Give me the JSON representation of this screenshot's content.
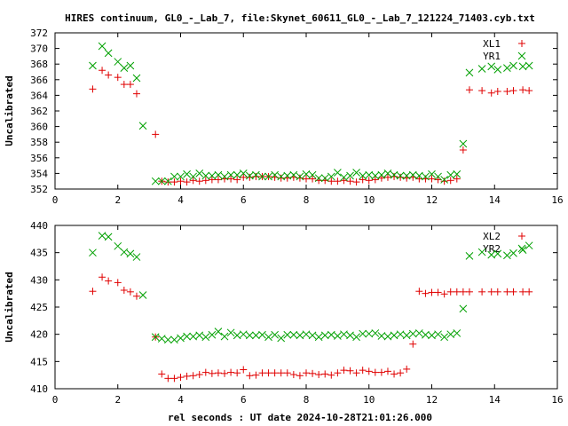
{
  "colors": {
    "background": "#ffffff",
    "series_a": "#e00000",
    "series_b": "#00a000",
    "axis": "#000000"
  },
  "title": "HIRES continuum, GL0_-_Lab_7, file:Skynet_60611_GL0_-_Lab_7_121224_71403.cyb.txt",
  "xlabel": "rel seconds : UT date 2024-10-28T21:01:26.000",
  "chart_data": [
    {
      "type": "scatter",
      "ylabel": "Uncalibrated",
      "xlim": [
        0,
        16
      ],
      "ylim": [
        352,
        372
      ],
      "xticks": [
        0,
        2,
        4,
        6,
        8,
        10,
        12,
        14,
        16
      ],
      "yticks": [
        352,
        354,
        356,
        358,
        360,
        362,
        364,
        366,
        368,
        370,
        372
      ],
      "series": [
        {
          "name": "XL1",
          "marker": "plus",
          "color": "#e00000",
          "x": [
            1.2,
            1.5,
            1.7,
            2.0,
            2.2,
            2.4,
            2.6,
            3.2,
            3.4,
            3.6,
            3.8,
            4.0,
            4.2,
            4.4,
            4.6,
            4.8,
            5.0,
            5.2,
            5.4,
            5.6,
            5.8,
            6.0,
            6.2,
            6.4,
            6.6,
            6.8,
            7.0,
            7.2,
            7.4,
            7.6,
            7.8,
            8.0,
            8.2,
            8.4,
            8.6,
            8.8,
            9.0,
            9.2,
            9.4,
            9.6,
            9.8,
            10.0,
            10.2,
            10.4,
            10.6,
            10.8,
            11.0,
            11.2,
            11.4,
            11.6,
            11.8,
            12.0,
            12.2,
            12.4,
            12.6,
            12.8,
            13.0,
            13.2,
            13.6,
            13.9,
            14.1,
            14.4,
            14.6,
            14.9,
            15.1
          ],
          "y": [
            364.8,
            367.2,
            366.6,
            366.3,
            365.4,
            365.4,
            364.2,
            359.0,
            353.0,
            352.9,
            352.9,
            353.0,
            352.9,
            353.1,
            353.0,
            353.1,
            353.2,
            353.2,
            353.3,
            353.3,
            353.2,
            353.5,
            353.5,
            353.6,
            353.6,
            353.6,
            353.5,
            353.4,
            353.4,
            353.5,
            353.4,
            353.3,
            353.3,
            353.1,
            353.1,
            353.0,
            353.0,
            353.1,
            353.0,
            352.9,
            353.2,
            353.1,
            353.2,
            353.4,
            353.5,
            353.6,
            353.5,
            353.4,
            353.5,
            353.3,
            353.3,
            353.3,
            353.2,
            353.0,
            353.1,
            353.3,
            357.0,
            364.7,
            364.6,
            364.3,
            364.5,
            364.5,
            364.6,
            364.7,
            364.6
          ]
        },
        {
          "name": "YR1",
          "marker": "cross",
          "color": "#00a000",
          "x": [
            1.2,
            1.5,
            1.7,
            2.0,
            2.2,
            2.4,
            2.6,
            2.8,
            3.2,
            3.4,
            3.6,
            3.8,
            4.0,
            4.2,
            4.4,
            4.6,
            4.8,
            5.0,
            5.2,
            5.4,
            5.6,
            5.8,
            6.0,
            6.2,
            6.4,
            6.6,
            6.8,
            7.0,
            7.2,
            7.4,
            7.6,
            7.8,
            8.0,
            8.2,
            8.4,
            8.6,
            8.8,
            9.0,
            9.2,
            9.4,
            9.6,
            9.8,
            10.0,
            10.2,
            10.4,
            10.6,
            10.8,
            11.0,
            11.2,
            11.4,
            11.6,
            11.8,
            12.0,
            12.2,
            12.4,
            12.6,
            12.8,
            13.0,
            13.2,
            13.6,
            13.9,
            14.1,
            14.4,
            14.6,
            14.9,
            15.1
          ],
          "y": [
            367.8,
            370.3,
            369.4,
            368.3,
            367.5,
            367.8,
            366.2,
            360.1,
            353.0,
            353.0,
            353.0,
            353.6,
            353.6,
            353.9,
            353.6,
            354.0,
            353.7,
            353.7,
            353.8,
            353.6,
            353.8,
            353.8,
            354.0,
            353.7,
            353.8,
            353.6,
            353.6,
            353.8,
            353.6,
            353.7,
            353.8,
            353.6,
            353.9,
            353.8,
            353.4,
            353.4,
            353.6,
            354.1,
            353.5,
            353.7,
            354.1,
            353.7,
            353.8,
            353.7,
            353.8,
            354.0,
            353.8,
            353.7,
            353.7,
            353.8,
            353.7,
            353.6,
            353.9,
            353.6,
            353.2,
            353.8,
            353.9,
            357.8,
            366.9,
            367.4,
            367.7,
            367.3,
            367.5,
            367.8,
            367.7,
            367.8
          ]
        }
      ]
    },
    {
      "type": "scatter",
      "ylabel": "Uncalibrated",
      "xlim": [
        0,
        16
      ],
      "ylim": [
        410,
        440
      ],
      "xticks": [
        0,
        2,
        4,
        6,
        8,
        10,
        12,
        14,
        16
      ],
      "yticks": [
        410,
        415,
        420,
        425,
        430,
        435,
        440
      ],
      "series": [
        {
          "name": "XL2",
          "marker": "plus",
          "color": "#e00000",
          "x": [
            1.2,
            1.5,
            1.7,
            2.0,
            2.2,
            2.4,
            2.6,
            3.2,
            3.4,
            3.6,
            3.8,
            4.0,
            4.2,
            4.4,
            4.6,
            4.8,
            5.0,
            5.2,
            5.4,
            5.6,
            5.8,
            6.0,
            6.2,
            6.4,
            6.6,
            6.8,
            7.0,
            7.2,
            7.4,
            7.6,
            7.8,
            8.0,
            8.2,
            8.4,
            8.6,
            8.8,
            9.0,
            9.2,
            9.4,
            9.6,
            9.8,
            10.0,
            10.2,
            10.4,
            10.6,
            10.8,
            11.0,
            11.2,
            11.4,
            11.6,
            11.8,
            12.0,
            12.2,
            12.4,
            12.6,
            12.8,
            13.0,
            13.2,
            13.6,
            13.9,
            14.1,
            14.4,
            14.6,
            14.9,
            15.1
          ],
          "y": [
            427.9,
            430.5,
            429.8,
            429.5,
            428.1,
            427.8,
            427.0,
            419.5,
            412.7,
            411.9,
            411.9,
            412.1,
            412.3,
            412.4,
            412.6,
            413.0,
            412.8,
            412.9,
            412.8,
            413.0,
            412.9,
            413.5,
            412.4,
            412.5,
            412.9,
            412.9,
            412.9,
            412.9,
            412.9,
            412.6,
            412.4,
            412.9,
            412.8,
            412.6,
            412.7,
            412.5,
            412.9,
            413.4,
            413.3,
            412.9,
            413.4,
            413.2,
            413.0,
            413.0,
            413.2,
            412.7,
            412.9,
            413.6,
            418.2,
            427.9,
            427.5,
            427.7,
            427.7,
            427.4,
            427.8,
            427.8,
            427.8,
            427.8,
            427.8,
            427.8,
            427.8,
            427.8,
            427.8,
            427.8,
            427.8
          ]
        },
        {
          "name": "YR2",
          "marker": "cross",
          "color": "#00a000",
          "x": [
            1.2,
            1.5,
            1.7,
            2.0,
            2.2,
            2.4,
            2.6,
            2.8,
            3.2,
            3.4,
            3.6,
            3.8,
            4.0,
            4.2,
            4.4,
            4.6,
            4.8,
            5.0,
            5.2,
            5.4,
            5.6,
            5.8,
            6.0,
            6.2,
            6.4,
            6.6,
            6.8,
            7.0,
            7.2,
            7.4,
            7.6,
            7.8,
            8.0,
            8.2,
            8.4,
            8.6,
            8.8,
            9.0,
            9.2,
            9.4,
            9.6,
            9.8,
            10.0,
            10.2,
            10.4,
            10.6,
            10.8,
            11.0,
            11.2,
            11.4,
            11.6,
            11.8,
            12.0,
            12.2,
            12.4,
            12.6,
            12.8,
            13.0,
            13.2,
            13.6,
            13.9,
            14.1,
            14.4,
            14.6,
            14.9,
            15.1
          ],
          "y": [
            435.0,
            438.1,
            437.9,
            436.2,
            435.1,
            434.8,
            434.2,
            427.2,
            419.5,
            419.2,
            419.0,
            419.0,
            419.3,
            419.6,
            419.6,
            419.8,
            419.5,
            419.9,
            420.5,
            419.6,
            420.3,
            419.8,
            420.0,
            419.8,
            419.8,
            419.9,
            419.5,
            419.9,
            419.3,
            419.9,
            419.9,
            419.8,
            420.0,
            419.8,
            419.5,
            419.8,
            419.9,
            419.7,
            420.0,
            419.8,
            419.5,
            420.1,
            420.1,
            420.2,
            419.7,
            419.6,
            419.8,
            420.0,
            419.8,
            420.1,
            420.2,
            419.9,
            419.8,
            420.0,
            419.5,
            420.0,
            420.2,
            424.7,
            434.4,
            435.1,
            434.6,
            434.8,
            434.5,
            434.9,
            435.5,
            436.3
          ]
        }
      ]
    }
  ]
}
